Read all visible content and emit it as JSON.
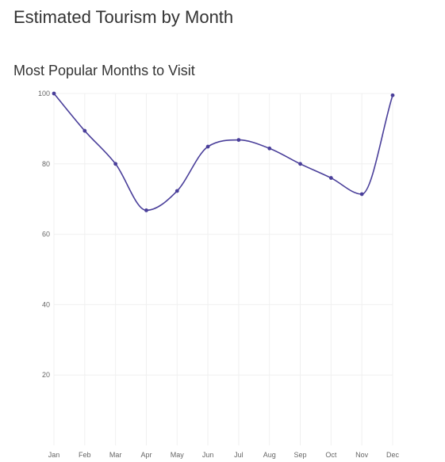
{
  "page": {
    "title": "Estimated Tourism by Month"
  },
  "chart_data": {
    "type": "line",
    "title": "Most Popular Months to Visit",
    "xlabel": "",
    "ylabel": "",
    "categories": [
      "Jan",
      "Feb",
      "Mar",
      "Apr",
      "May",
      "Jun",
      "Jul",
      "Aug",
      "Sep",
      "Oct",
      "Nov",
      "Dec"
    ],
    "series": [
      {
        "values": [
          100,
          89.4,
          80,
          66.8,
          72.3,
          84.9,
          86.8,
          84.4,
          80,
          76,
          71.4,
          99.5
        ]
      }
    ],
    "ylim": [
      0,
      100
    ],
    "yticks": [
      20,
      40,
      60,
      80,
      100
    ],
    "grid": true,
    "legend": "none",
    "colors": {
      "line": "#4a3f9a",
      "point": "#4a3f9a",
      "grid": "#f0f0f0",
      "tick_text": "#666666"
    }
  }
}
